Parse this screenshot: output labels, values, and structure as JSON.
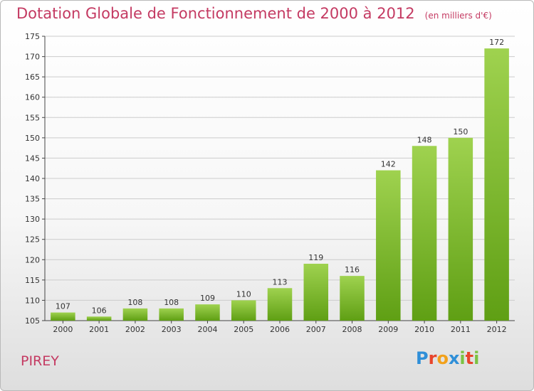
{
  "title": "Dotation Globale de Fonctionnement de 2000 à 2012",
  "subtitle": "(en milliers d'€)",
  "commune": "PIREY",
  "logo": {
    "text": "Proxiti",
    "letters": [
      {
        "char": "P",
        "color": "#2f8fd8"
      },
      {
        "char": "r",
        "color": "#e8452c"
      },
      {
        "char": "o",
        "color": "#f2a11b"
      },
      {
        "char": "x",
        "color": "#2f8fd8"
      },
      {
        "char": "i",
        "color": "#7cc242"
      },
      {
        "char": "t",
        "color": "#e8452c"
      },
      {
        "char": "i",
        "color": "#7cc242"
      }
    ]
  },
  "colors": {
    "title": "#c43a62",
    "bar_light": "#9fd24f",
    "bar_dark": "#5f9f14",
    "grid": "#cccccc",
    "axis": "#444444"
  },
  "chart_data": {
    "type": "bar",
    "title": "Dotation Globale de Fonctionnement de 2000 à 2012",
    "subtitle": "(en milliers d'€)",
    "categories": [
      "2000",
      "2001",
      "2002",
      "2003",
      "2004",
      "2005",
      "2006",
      "2007",
      "2008",
      "2009",
      "2010",
      "2011",
      "2012"
    ],
    "values": [
      107,
      106,
      108,
      108,
      109,
      110,
      113,
      119,
      116,
      142,
      148,
      150,
      172
    ],
    "ylim": [
      105,
      175
    ],
    "yticks": [
      105,
      110,
      115,
      120,
      125,
      130,
      135,
      140,
      145,
      150,
      155,
      160,
      165,
      170,
      175
    ],
    "grid": true,
    "data_labels": true
  }
}
